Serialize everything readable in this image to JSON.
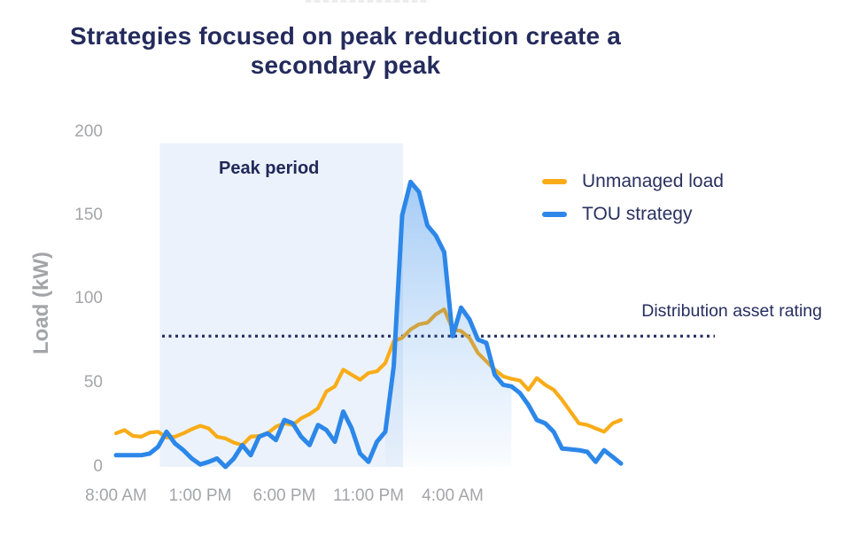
{
  "title": {
    "line1": "Strategies focused on peak reduction create a",
    "line2": "secondary peak"
  },
  "chart": {
    "y_axis": {
      "label": "Load (kW)",
      "tick_labels": [
        "200",
        "150",
        "100",
        "50",
        "0"
      ]
    },
    "x_axis": {
      "tick_labels": [
        "8:00 AM",
        "1:00 PM",
        "6:00 PM",
        "11:00 PM",
        "4:00 AM"
      ]
    },
    "annotations": {
      "peak_period_label": "Peak period",
      "asset_rating_label": "Distribution asset rating"
    },
    "legend": [
      {
        "label": "Unmanaged load",
        "color": "#F9AC18"
      },
      {
        "label": "TOU strategy",
        "color": "#2C87E9"
      }
    ],
    "colors": {
      "title_navy": "#242B5C",
      "axis_gray": "#A4A5A8",
      "peak_region_fill": "#EBF2FB",
      "dotted_line_navy": "#2B3166",
      "spike_fill_blue": "#2B86E9"
    }
  },
  "chart_data": {
    "type": "line",
    "title": "Strategies focused on peak reduction create a secondary peak",
    "xlabel": "",
    "ylabel": "Load (kW)",
    "ylim": [
      0,
      200
    ],
    "grid": false,
    "legend_position": "upper right",
    "x_unit": "hours after 8:00 AM",
    "x_start_hour": 0,
    "x_step_hours": 0.5,
    "x_tick_hours": [
      0,
      5,
      10,
      15,
      20
    ],
    "x_tick_labels": [
      "8:00 AM",
      "1:00 PM",
      "6:00 PM",
      "11:00 PM",
      "4:00 AM"
    ],
    "series": [
      {
        "name": "Unmanaged load",
        "color": "#F9AC18",
        "values": [
          20,
          22,
          18.5,
          18,
          20.5,
          21,
          17.5,
          18,
          20,
          22.5,
          24.5,
          23,
          18,
          17,
          14.5,
          13,
          18,
          18.5,
          20,
          24,
          26,
          25,
          29,
          31.5,
          35,
          45,
          48,
          58,
          55,
          52,
          56,
          57,
          62,
          75,
          77,
          82,
          85,
          86,
          91,
          94,
          82,
          81,
          77,
          68,
          63,
          58,
          54,
          52.5,
          51.5,
          46,
          53,
          49,
          46,
          40,
          33,
          26,
          25,
          23,
          21,
          26,
          28
        ]
      },
      {
        "name": "TOU strategy",
        "color": "#2C87E9",
        "values": [
          7,
          7,
          7,
          7,
          8,
          12,
          21,
          14,
          10,
          5,
          1.5,
          3,
          5,
          0,
          5,
          13,
          7,
          18,
          20,
          16,
          28,
          26,
          18,
          13,
          25,
          22,
          15,
          33,
          23,
          8,
          3,
          15,
          21,
          60,
          150,
          170,
          164,
          144,
          138,
          128,
          78,
          95,
          88,
          76,
          74,
          55,
          49,
          48,
          44,
          37,
          28,
          26,
          21,
          11,
          10.5,
          10,
          9,
          3,
          10,
          6,
          2
        ]
      }
    ],
    "peak_period": {
      "label": "Peak period",
      "start_hour": 2.6,
      "end_hour": 17.05,
      "top_kw": 193
    },
    "asset_rating": {
      "label": "Distribution asset rating",
      "value_kw": 78
    }
  }
}
